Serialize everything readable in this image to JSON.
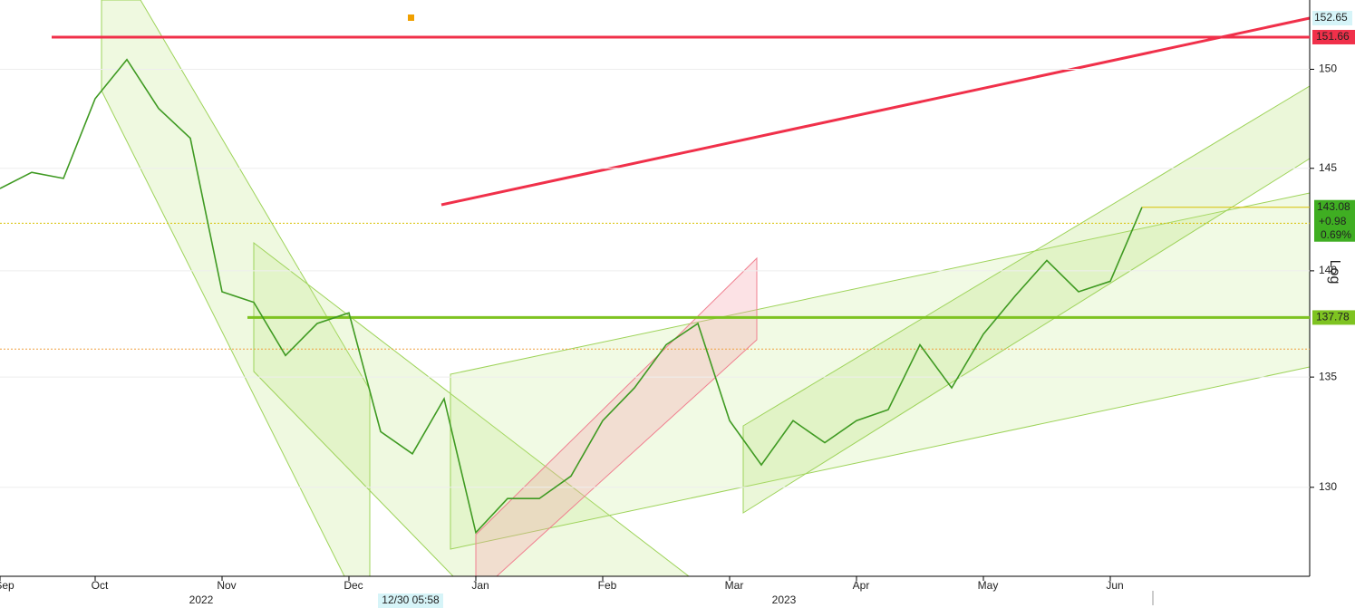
{
  "chart_data": {
    "type": "line",
    "categories": [
      "Sep",
      null,
      null,
      "Oct",
      null,
      null,
      null,
      "Nov",
      null,
      null,
      null,
      "Dec",
      null,
      null,
      null,
      "Jan",
      null,
      null,
      null,
      "Feb",
      null,
      null,
      null,
      "Mar",
      null,
      null,
      null,
      "Apr",
      null,
      null,
      null,
      "May",
      null,
      null,
      null,
      "Jun",
      null
    ],
    "values": [
      144.0,
      144.8,
      144.5,
      148.5,
      150.5,
      148.0,
      146.5,
      139.0,
      138.5,
      136.0,
      137.5,
      138.0,
      132.5,
      131.5,
      134.0,
      128.0,
      129.5,
      129.5,
      130.5,
      133.0,
      134.5,
      136.5,
      137.5,
      133.0,
      131.0,
      133.0,
      132.0,
      133.0,
      133.5,
      136.5,
      134.5,
      137.0,
      138.8,
      140.5,
      139.0,
      139.5,
      143.08
    ],
    "color": "#3f9a22",
    "year_labels": [
      "2022",
      "2023"
    ],
    "ylim": [
      126.1,
      153.6
    ],
    "yticks": [
      130,
      135,
      140,
      145,
      150
    ],
    "log_scale": true,
    "axis_label": "Log",
    "levels": [
      {
        "value": 151.66,
        "color": "#f0304a"
      },
      {
        "value": 137.78,
        "color": "#7ec321"
      }
    ],
    "dotted_levels": [
      142.3,
      136.3
    ],
    "trendline_end": 152.65,
    "last_change": {
      "value": 0.98,
      "label": "+0.98"
    },
    "last_change_pct": {
      "value": 0.69,
      "label": "0.69%"
    },
    "cursor_label": "12/30 05:58"
  }
}
